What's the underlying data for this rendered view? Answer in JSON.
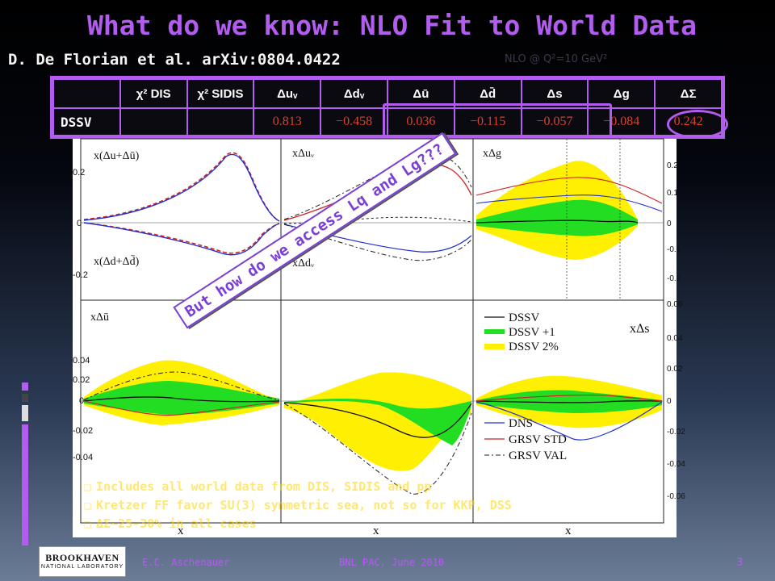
{
  "title": "What do we know: NLO Fit to World Data",
  "subtitle": "D. De Florian et al. arXiv:0804.0422",
  "nlo_note": "NLO @ Q²=10 GeV²",
  "table": {
    "headers": [
      "",
      "χ² DIS",
      "χ² SIDIS",
      "Δuᵥ",
      "Δdᵥ",
      "Δū",
      "Δd̄",
      "Δs",
      "Δg",
      "ΔΣ"
    ],
    "row_label": "DSSV",
    "values": [
      "",
      "",
      "0.813",
      "−0.458",
      "0.036",
      "−0.115",
      "−0.057",
      "−0.084",
      "0.242"
    ]
  },
  "figure": {
    "panel_labels": [
      "x(Δu+Δū)",
      "x(Δd+Δd̄)",
      "xΔuᵥ",
      "xΔdᵥ",
      "xΔg",
      "xΔū",
      "xΔs"
    ],
    "y_ticks_top": [
      "0.2",
      "0",
      "-0.2"
    ],
    "y_ticks_bottom": [
      "0.04",
      "0.02",
      "0",
      "-0.02",
      "-0.04"
    ],
    "right_ticks_top": [
      "0.2",
      "0.1",
      "0",
      "-0.1",
      "-0.2"
    ],
    "right_ticks_bottom": [
      "0.06",
      "0.04",
      "0.02",
      "0",
      "-0.02",
      "-0.04",
      "-0.06"
    ],
    "x_label": "x",
    "legend_top": [
      "DSSV",
      "DSSV +1",
      "DSSV 2%"
    ],
    "legend_bottom": [
      "DNS",
      "GRSV STD",
      "GRSV VAL"
    ],
    "colors": {
      "band_yellow": "#ffef00",
      "band_green": "#22dd22",
      "red": "#e02020",
      "blue": "#2030d0"
    }
  },
  "stamp": "But how do we access Lq and Lg???",
  "bullets": [
    "Includes all world data from DIS, SIDIS and pp",
    "Kretzer FF favor SU(3) symmetric sea, not so for KKP, DSS",
    "ΔΣ~25-30% in all cases"
  ],
  "footer": {
    "logo_line1": "BROOKHAVEN",
    "logo_line2": "NATIONAL LABORATORY",
    "author": "E.C. Aschenauer",
    "event": "BNL PAC, June 2010",
    "page": "3"
  }
}
